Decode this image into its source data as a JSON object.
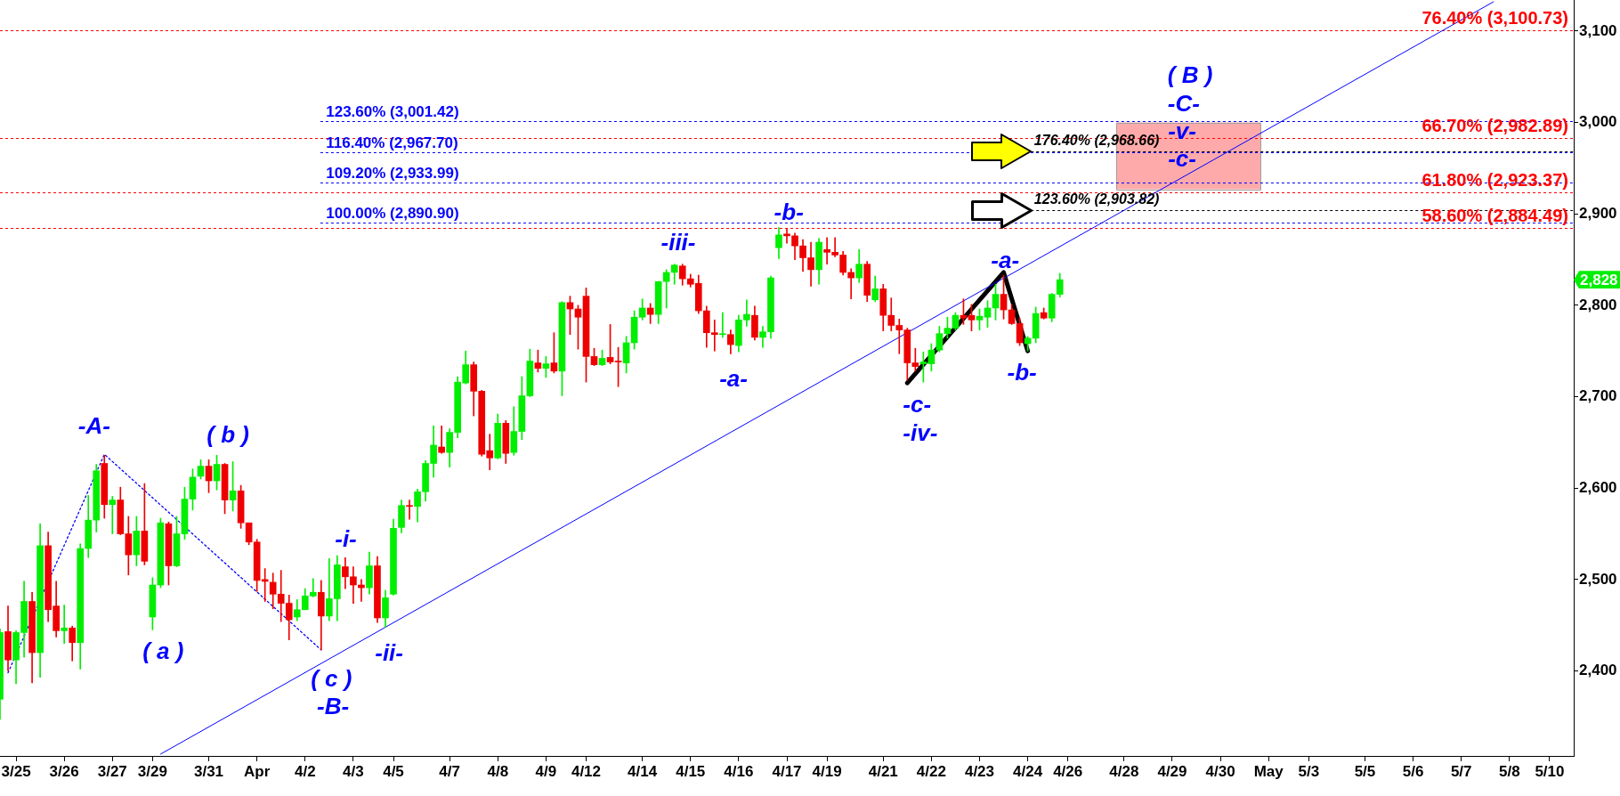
{
  "chart_data": {
    "type": "candlestick",
    "categories": [
      null,
      null,
      "3/25",
      null,
      null,
      null,
      null,
      null,
      "3/26",
      null,
      null,
      null,
      null,
      null,
      "3/27",
      null,
      null,
      null,
      null,
      "3/29",
      null,
      null,
      null,
      null,
      null,
      null,
      "3/31",
      null,
      null,
      null,
      null,
      null,
      "Apr",
      null,
      null,
      null,
      null,
      null,
      "4/2",
      null,
      null,
      null,
      null,
      null,
      "4/3",
      null,
      null,
      null,
      null,
      "4/5",
      null,
      null,
      null,
      null,
      null,
      null,
      "4/7",
      null,
      null,
      null,
      null,
      null,
      "4/8",
      null,
      null,
      null,
      null,
      null,
      "4/9",
      null,
      null,
      null,
      null,
      "4/12",
      null,
      null,
      null,
      null,
      null,
      null,
      "4/14",
      null,
      null,
      null,
      null,
      null,
      "4/15",
      null,
      null,
      null,
      null,
      null,
      "4/16",
      null,
      null,
      null,
      null,
      null,
      "4/17",
      null,
      null,
      null,
      null,
      "4/19",
      null,
      null,
      null,
      null,
      null,
      null,
      "4/21",
      null,
      null,
      null,
      null,
      null,
      "4/22",
      null,
      null,
      null,
      null,
      null,
      "4/23",
      null,
      null,
      null,
      null,
      null,
      "4/24",
      null,
      null,
      null,
      null,
      "4/26",
      null,
      null,
      null,
      null,
      null,
      null,
      "4/28",
      null,
      null,
      null,
      null,
      null,
      "4/29",
      null,
      null,
      null,
      null,
      null,
      "4/30",
      null,
      null,
      null,
      null,
      null,
      "May",
      null,
      null,
      null,
      null,
      "5/3",
      null,
      null,
      null,
      null,
      null,
      null,
      "5/5",
      null,
      null,
      null,
      null,
      null,
      "5/6",
      null,
      null,
      null,
      null,
      null,
      "5/7",
      null,
      null,
      null,
      null,
      null,
      "5/8",
      null,
      null,
      null,
      null,
      "5/10",
      null,
      null,
      null
    ],
    "ohlc": [
      [
        2369,
        2446,
        2347,
        2442
      ],
      [
        2443,
        2471,
        2400,
        2412
      ],
      [
        2412,
        2444,
        2386,
        2442
      ],
      [
        2442,
        2498,
        2415,
        2476
      ],
      [
        2476,
        2486,
        2387,
        2420
      ],
      [
        2420,
        2561,
        2393,
        2537
      ],
      [
        2537,
        2552,
        2454,
        2467
      ],
      [
        2471,
        2498,
        2437,
        2444
      ],
      [
        2444,
        2472,
        2430,
        2447
      ],
      [
        2447,
        2449,
        2411,
        2431
      ],
      [
        2431,
        2539,
        2402,
        2534
      ],
      [
        2534,
        2592,
        2524,
        2565
      ],
      [
        2565,
        2626,
        2552,
        2619
      ],
      [
        2627,
        2636,
        2567,
        2582
      ],
      [
        2582,
        2591,
        2550,
        2587
      ],
      [
        2587,
        2601,
        2549,
        2550
      ],
      [
        2550,
        2569,
        2505,
        2527
      ],
      [
        2527,
        2569,
        2515,
        2553
      ],
      [
        2553,
        2605,
        2516,
        2520
      ],
      [
        2459,
        2502,
        2445,
        2494
      ],
      [
        2494,
        2567,
        2491,
        2562
      ],
      [
        2561,
        2563,
        2494,
        2515
      ],
      [
        2515,
        2569,
        2514,
        2550
      ],
      [
        2550,
        2601,
        2544,
        2588
      ],
      [
        2588,
        2621,
        2576,
        2612
      ],
      [
        2613,
        2631,
        2610,
        2624
      ],
      [
        2624,
        2631,
        2595,
        2608
      ],
      [
        2608,
        2636,
        2598,
        2626
      ],
      [
        2626,
        2627,
        2572,
        2587
      ],
      [
        2587,
        2629,
        2575,
        2597
      ],
      [
        2597,
        2603,
        2556,
        2562
      ],
      [
        2562,
        2562,
        2538,
        2541
      ],
      [
        2541,
        2544,
        2487,
        2499
      ],
      [
        2500,
        2512,
        2476,
        2498
      ],
      [
        2497,
        2507,
        2468,
        2484
      ],
      [
        2484,
        2510,
        2454,
        2474
      ],
      [
        2474,
        2483,
        2434,
        2456
      ],
      [
        2459,
        2478,
        2455,
        2467
      ],
      [
        2467,
        2490,
        2467,
        2482
      ],
      [
        2482,
        2501,
        2481,
        2486
      ],
      [
        2486,
        2499,
        2423,
        2460
      ],
      [
        2460,
        2523,
        2455,
        2479
      ],
      [
        2479,
        2526,
        2455,
        2516
      ],
      [
        2514,
        2524,
        2490,
        2503
      ],
      [
        2503,
        2514,
        2474,
        2494
      ],
      [
        2494,
        2500,
        2476,
        2491
      ],
      [
        2491,
        2530,
        2484,
        2515
      ],
      [
        2515,
        2525,
        2453,
        2458
      ],
      [
        2458,
        2488,
        2448,
        2480
      ],
      [
        2484,
        2566,
        2483,
        2556
      ],
      [
        2557,
        2587,
        2551,
        2581
      ],
      [
        2581,
        2587,
        2566,
        2580
      ],
      [
        2580,
        2599,
        2563,
        2596
      ],
      [
        2596,
        2630,
        2586,
        2627
      ],
      [
        2627,
        2668,
        2612,
        2647
      ],
      [
        2645,
        2668,
        2638,
        2639
      ],
      [
        2639,
        2665,
        2623,
        2661
      ],
      [
        2661,
        2722,
        2655,
        2716
      ],
      [
        2715,
        2750,
        2714,
        2735
      ],
      [
        2735,
        2738,
        2679,
        2706
      ],
      [
        2706,
        2707,
        2635,
        2637
      ],
      [
        2641,
        2659,
        2620,
        2633
      ],
      [
        2633,
        2681,
        2632,
        2671
      ],
      [
        2671,
        2674,
        2627,
        2638
      ],
      [
        2639,
        2689,
        2636,
        2662
      ],
      [
        2662,
        2722,
        2653,
        2701
      ],
      [
        2701,
        2752,
        2700,
        2739
      ],
      [
        2737,
        2751,
        2727,
        2731
      ],
      [
        2731,
        2744,
        2721,
        2736
      ],
      [
        2737,
        2770,
        2726,
        2728
      ],
      [
        2728,
        2804,
        2701,
        2803
      ],
      [
        2803,
        2810,
        2768,
        2796
      ],
      [
        2796,
        2800,
        2752,
        2787
      ],
      [
        2810,
        2819,
        2716,
        2744
      ],
      [
        2744,
        2753,
        2734,
        2735
      ],
      [
        2735,
        2751,
        2734,
        2742
      ],
      [
        2743,
        2779,
        2736,
        2738
      ],
      [
        2739,
        2754,
        2711,
        2738
      ],
      [
        2737,
        2766,
        2726,
        2759
      ],
      [
        2759,
        2794,
        2752,
        2787
      ],
      [
        2787,
        2807,
        2784,
        2797
      ],
      [
        2797,
        2802,
        2780,
        2790
      ],
      [
        2790,
        2826,
        2780,
        2826
      ],
      [
        2826,
        2839,
        2797,
        2836
      ],
      [
        2836,
        2845,
        2823,
        2844
      ],
      [
        2843,
        2845,
        2822,
        2829
      ],
      [
        2829,
        2834,
        2820,
        2823
      ],
      [
        2824,
        2833,
        2791,
        2794
      ],
      [
        2794,
        2799,
        2754,
        2770
      ],
      [
        2770,
        2784,
        2750,
        2768
      ],
      [
        2768,
        2792,
        2765,
        2769
      ],
      [
        2768,
        2773,
        2747,
        2757
      ],
      [
        2756,
        2789,
        2749,
        2784
      ],
      [
        2784,
        2806,
        2777,
        2790
      ],
      [
        2789,
        2799,
        2762,
        2765
      ],
      [
        2765,
        2777,
        2754,
        2771
      ],
      [
        2771,
        2832,
        2764,
        2830
      ],
      [
        2863,
        2885,
        2851,
        2877
      ],
      [
        2878,
        2884,
        2868,
        2876
      ],
      [
        2876,
        2879,
        2850,
        2865
      ],
      [
        2865,
        2872,
        2837,
        2852
      ],
      [
        2852,
        2869,
        2821,
        2839
      ],
      [
        2839,
        2873,
        2823,
        2869
      ],
      [
        2861,
        2874,
        2845,
        2858
      ],
      [
        2858,
        2874,
        2853,
        2855
      ],
      [
        2855,
        2859,
        2833,
        2836
      ],
      [
        2836,
        2840,
        2807,
        2830
      ],
      [
        2830,
        2861,
        2825,
        2845
      ],
      [
        2845,
        2848,
        2804,
        2811
      ],
      [
        2806,
        2832,
        2804,
        2818
      ],
      [
        2818,
        2823,
        2772,
        2789
      ],
      [
        2789,
        2808,
        2772,
        2778
      ],
      [
        2778,
        2785,
        2747,
        2773
      ],
      [
        2773,
        2775,
        2718,
        2737
      ],
      [
        2737,
        2753,
        2728,
        2733
      ],
      [
        2736,
        2749,
        2716,
        2738
      ],
      [
        2736,
        2758,
        2728,
        2751
      ],
      [
        2751,
        2777,
        2749,
        2769
      ],
      [
        2769,
        2787,
        2764,
        2775
      ],
      [
        2775,
        2792,
        2773,
        2789
      ],
      [
        2789,
        2807,
        2779,
        2786
      ],
      [
        2789,
        2801,
        2772,
        2784
      ],
      [
        2784,
        2796,
        2773,
        2788
      ],
      [
        2787,
        2805,
        2776,
        2797
      ],
      [
        2797,
        2823,
        2784,
        2812
      ],
      [
        2812,
        2833,
        2785,
        2795
      ],
      [
        2795,
        2801,
        2779,
        2780
      ],
      [
        2780,
        2786,
        2756,
        2759
      ],
      [
        2758,
        2766,
        2750,
        2764
      ],
      [
        2764,
        2798,
        2759,
        2791
      ],
      [
        2792,
        2797,
        2785,
        2786
      ],
      [
        2786,
        2813,
        2782,
        2812
      ],
      [
        2812,
        2835,
        2809,
        2828
      ],
      null,
      null,
      null,
      null,
      null,
      null,
      null,
      null,
      null,
      null,
      null,
      null,
      null,
      null,
      null,
      null,
      null,
      null,
      null,
      null,
      null,
      null,
      null,
      null,
      null,
      null,
      null,
      null,
      null,
      null,
      null,
      null,
      null,
      null,
      null,
      null,
      null,
      null,
      null,
      null,
      null,
      null,
      null,
      null,
      null,
      null,
      null,
      null,
      null,
      null,
      null,
      null,
      null,
      null,
      null,
      null,
      null,
      null,
      null,
      null,
      null,
      null,
      null,
      null
    ],
    "colors": [
      "#00ee00",
      "#ee0000",
      "#00ee00",
      "#00ee00",
      "#ee0000",
      "#00ee00",
      "#ee0000",
      "#ee0000",
      "#00ee00",
      "#ee0000",
      "#00ee00",
      "#00ee00",
      "#00ee00",
      "#ee0000",
      "#00ee00",
      "#ee0000",
      "#ee0000",
      "#00ee00",
      "#ee0000",
      "#00ee00",
      "#00ee00",
      "#ee0000",
      "#00ee00",
      "#00ee00",
      "#00ee00",
      "#00ee00",
      "#ee0000",
      "#00ee00",
      "#ee0000",
      "#00ee00",
      "#ee0000",
      "#ee0000",
      "#ee0000",
      "#ee0000",
      "#ee0000",
      "#ee0000",
      "#ee0000",
      "#00ee00",
      "#00ee00",
      "#00ee00",
      "#ee0000",
      "#00ee00",
      "#00ee00",
      "#ee0000",
      "#ee0000",
      "#ee0000",
      "#00ee00",
      "#ee0000",
      "#00ee00",
      "#00ee00",
      "#00ee00",
      "#ee0000",
      "#00ee00",
      "#00ee00",
      "#00ee00",
      "#ee0000",
      "#00ee00",
      "#00ee00",
      "#00ee00",
      "#ee0000",
      "#ee0000",
      "#ee0000",
      "#00ee00",
      "#ee0000",
      "#00ee00",
      "#00ee00",
      "#00ee00",
      "#ee0000",
      "#00ee00",
      "#ee0000",
      "#00ee00",
      "#ee0000",
      "#ee0000",
      "#ee0000",
      "#ee0000",
      "#00ee00",
      "#ee0000",
      "#ee0000",
      "#00ee00",
      "#00ee00",
      "#00ee00",
      "#ee0000",
      "#00ee00",
      "#00ee00",
      "#00ee00",
      "#ee0000",
      "#ee0000",
      "#ee0000",
      "#ee0000",
      "#ee0000",
      "#00ee00",
      "#ee0000",
      "#00ee00",
      "#00ee00",
      "#ee0000",
      "#00ee00",
      "#00ee00",
      "#00ee00",
      "#ee0000",
      "#ee0000",
      "#ee0000",
      "#ee0000",
      "#00ee00",
      "#ee0000",
      "#ee0000",
      "#ee0000",
      "#ee0000",
      "#00ee00",
      "#ee0000",
      "#00ee00",
      "#ee0000",
      "#ee0000",
      "#ee0000",
      "#ee0000",
      "#ee0000",
      "#00ee00",
      "#00ee00",
      "#00ee00",
      "#00ee00",
      "#00ee00",
      "#ee0000",
      "#ee0000",
      "#00ee00",
      "#00ee00",
      "#00ee00",
      "#ee0000",
      "#ee0000",
      "#ee0000",
      "#00ee00",
      "#00ee00",
      "#ee0000",
      "#00ee00",
      "#00ee00",
      null,
      null,
      null,
      null,
      null,
      null,
      null,
      null,
      null,
      null,
      null,
      null,
      null,
      null,
      null,
      null,
      null,
      null,
      null,
      null,
      null,
      null,
      null,
      null,
      null,
      null,
      null,
      null,
      null,
      null,
      null,
      null,
      null,
      null,
      null,
      null,
      null,
      null,
      null,
      null,
      null,
      null,
      null,
      null,
      null,
      null,
      null,
      null,
      null,
      null,
      null,
      null,
      null,
      null,
      null,
      null,
      null,
      null,
      null,
      null,
      null,
      null,
      null,
      null
    ],
    "series": [
      {
        "type": "line",
        "color": "#0000ff",
        "values": [
          null,
          null,
          null,
          null,
          null,
          null,
          null,
          null,
          null,
          null,
          null,
          null,
          null,
          null,
          null,
          null,
          null,
          null,
          null,
          null,
          2309,
          null,
          null,
          null,
          null,
          null,
          null,
          null,
          null,
          null,
          null,
          null,
          null,
          null,
          null,
          null,
          null,
          null,
          null,
          null,
          null,
          null,
          null,
          null,
          null,
          null,
          null,
          null,
          null,
          null,
          null,
          null,
          null,
          null,
          null,
          null,
          null,
          null,
          null,
          null,
          null,
          null,
          null,
          null,
          null,
          null,
          null,
          null,
          null,
          null,
          null,
          null,
          null,
          null,
          null,
          null,
          null,
          null,
          null,
          null,
          null,
          null,
          null,
          null,
          null,
          null,
          null,
          null,
          null,
          null,
          null,
          null,
          null,
          null,
          null,
          null,
          null,
          null,
          null,
          null,
          null,
          null,
          null,
          null,
          null,
          null,
          null,
          null,
          null,
          null,
          null,
          null,
          null,
          null,
          null,
          null,
          null,
          null,
          null,
          null,
          null,
          null,
          null,
          null,
          null,
          null,
          null,
          null,
          null,
          null,
          null,
          null,
          null,
          null,
          null,
          null,
          null,
          null,
          null,
          null,
          null,
          null,
          null,
          null,
          null,
          null,
          null,
          null,
          null,
          null,
          null,
          null,
          null,
          null,
          null,
          null,
          null,
          null,
          null,
          null,
          null,
          null,
          null,
          null,
          null,
          null,
          null,
          null,
          null,
          null,
          null,
          null,
          null,
          null,
          null,
          null,
          null,
          null,
          null,
          null,
          null,
          null,
          null,
          null,
          null,
          null,
          3132,
          null,
          null,
          null,
          null,
          null,
          null,
          null,
          null,
          null,
          null
        ]
      },
      {
        "type": "line",
        "color": "#0000ff",
        "line_style": "dotted",
        "values": [
          null,
          2398,
          null,
          null,
          null,
          null,
          null,
          null,
          null,
          null,
          null,
          null,
          null,
          2637,
          null,
          null,
          null,
          null,
          null,
          null,
          null,
          null,
          null,
          null,
          null,
          null,
          null,
          null,
          null,
          null,
          null,
          null,
          null,
          null,
          null,
          null,
          null,
          null,
          null,
          null,
          2423,
          null,
          null,
          null,
          null,
          null,
          null,
          null,
          null,
          null,
          null,
          null,
          null,
          null,
          null,
          null,
          null,
          null,
          null,
          null,
          null,
          null,
          null,
          null,
          null,
          null,
          null,
          null,
          null,
          null,
          null,
          null,
          null,
          null,
          null,
          null,
          null,
          null,
          null,
          null,
          null,
          null,
          null,
          null,
          null,
          null,
          null,
          null,
          null,
          null,
          null,
          null,
          null,
          null,
          null,
          null,
          null,
          null,
          null,
          null,
          null,
          null,
          null,
          null,
          null,
          null,
          null,
          null,
          null,
          null,
          null,
          null,
          null,
          null,
          null,
          null,
          null,
          null,
          null,
          null,
          null,
          null,
          null,
          null,
          null,
          null,
          null,
          null,
          null,
          null,
          null,
          null,
          null,
          null,
          null,
          null,
          null,
          null,
          null,
          null,
          null,
          null,
          null,
          null,
          null,
          null,
          null,
          null,
          null,
          null,
          null,
          null,
          null,
          null,
          null,
          null,
          null,
          null,
          null,
          null,
          null,
          null,
          null,
          null,
          null,
          null,
          null,
          null,
          null,
          null,
          null,
          null,
          null,
          null,
          null,
          null,
          null,
          null,
          null,
          null,
          null,
          null,
          null,
          null,
          null,
          null,
          null,
          null,
          null,
          null,
          null,
          null,
          null,
          null,
          null,
          null,
          null
        ]
      },
      {
        "type": "line",
        "color": "#000000",
        "values": [
          null,
          null,
          null,
          null,
          null,
          null,
          null,
          null,
          null,
          null,
          null,
          null,
          null,
          null,
          null,
          null,
          null,
          null,
          null,
          null,
          null,
          null,
          null,
          null,
          null,
          null,
          null,
          null,
          null,
          null,
          null,
          null,
          null,
          null,
          null,
          null,
          null,
          null,
          null,
          null,
          null,
          null,
          null,
          null,
          null,
          null,
          null,
          null,
          null,
          null,
          null,
          null,
          null,
          null,
          null,
          null,
          null,
          null,
          null,
          null,
          null,
          null,
          null,
          null,
          null,
          null,
          null,
          null,
          null,
          null,
          null,
          null,
          null,
          null,
          null,
          null,
          null,
          null,
          null,
          null,
          null,
          null,
          null,
          null,
          null,
          null,
          null,
          null,
          null,
          null,
          null,
          null,
          null,
          null,
          null,
          null,
          null,
          null,
          null,
          null,
          null,
          null,
          null,
          null,
          null,
          null,
          null,
          null,
          null,
          null,
          null,
          null,
          null,
          2715,
          null,
          null,
          null,
          null,
          null,
          null,
          null,
          null,
          null,
          null,
          null,
          2836,
          null,
          null,
          2750,
          null,
          null,
          null,
          null,
          null,
          null,
          null,
          null,
          null,
          null,
          null,
          null,
          null,
          null,
          null,
          null,
          null,
          null,
          null,
          null,
          null,
          null,
          null,
          null,
          null,
          null,
          null,
          null,
          null,
          null,
          null,
          null,
          null,
          null,
          null,
          null,
          null,
          null,
          null,
          null,
          null,
          null,
          null,
          null,
          null,
          null,
          null,
          null,
          null,
          null,
          null,
          null,
          null,
          null,
          null,
          null,
          null,
          null,
          null,
          null,
          null,
          null,
          null,
          null,
          null,
          null,
          null,
          null
        ]
      }
    ],
    "ylim": [
      2307,
      3134
    ],
    "yticks": [
      {
        "value": 2400,
        "label": "2,400"
      },
      {
        "value": 2500,
        "label": "2,500"
      },
      {
        "value": 2600,
        "label": "2,600"
      },
      {
        "value": 2700,
        "label": "2,700"
      },
      {
        "value": 2800,
        "label": "2,800"
      },
      {
        "value": 2900,
        "label": "2,900"
      },
      {
        "value": 3000,
        "label": "3,000"
      },
      {
        "value": 3100,
        "label": "3,100"
      }
    ],
    "ref_lines": [
      {
        "axis": "y",
        "value": 3100.73,
        "label": "76.40% (3,100.73)",
        "color": "#ff0000",
        "line_style": "dotted"
      },
      {
        "axis": "y",
        "value": 2982.89,
        "label": "66.70% (2,982.89)",
        "color": "#ff0000",
        "line_style": "dotted"
      },
      {
        "axis": "y",
        "value": 2923.37,
        "label": "61.80% (2,923.37)",
        "color": "#ff0000",
        "line_style": "dotted"
      },
      {
        "axis": "y",
        "value": 2884.49,
        "label": "58.60% (2,884.49)",
        "color": "#ff0000",
        "line_style": "dotted"
      },
      {
        "axis": "y",
        "value": 3001.42,
        "label": "123.60% (3,001.42)",
        "color": "#0000ff",
        "line_style": "dotted"
      },
      {
        "axis": "y",
        "value": 2967.7,
        "label": "116.40% (2,967.70)",
        "color": "#0000ff",
        "line_style": "dotted"
      },
      {
        "axis": "y",
        "value": 2933.99,
        "label": "109.20% (2,933.99)",
        "color": "#0000ff",
        "line_style": "dotted"
      },
      {
        "axis": "y",
        "value": 2890.9,
        "label": "100.00% (2,890.90)",
        "color": "#0000ff",
        "line_style": "dotted"
      },
      {
        "axis": "y",
        "value": 2968.66,
        "label": "176.40% (2,968.66)",
        "color": "#000000",
        "line_style": "dotted"
      },
      {
        "axis": "y",
        "value": 2903.82,
        "label": "123.60% (2,903.82)",
        "color": "#000000",
        "line_style": "dotted"
      }
    ],
    "bands": [
      {
        "axis": "y",
        "from": 2927,
        "to": 3000,
        "color": "#ffaaaa"
      }
    ],
    "annotations": [
      "-A-",
      "( a )",
      "( b )",
      "( c )",
      "-B-",
      "-i-",
      "-ii-",
      "-iii-",
      "-a-",
      "-b-",
      "-c-",
      "-iv-",
      "-a-",
      "-b-",
      "( B )",
      "-C-",
      "-v-",
      "-c-",
      "2,828"
    ]
  }
}
